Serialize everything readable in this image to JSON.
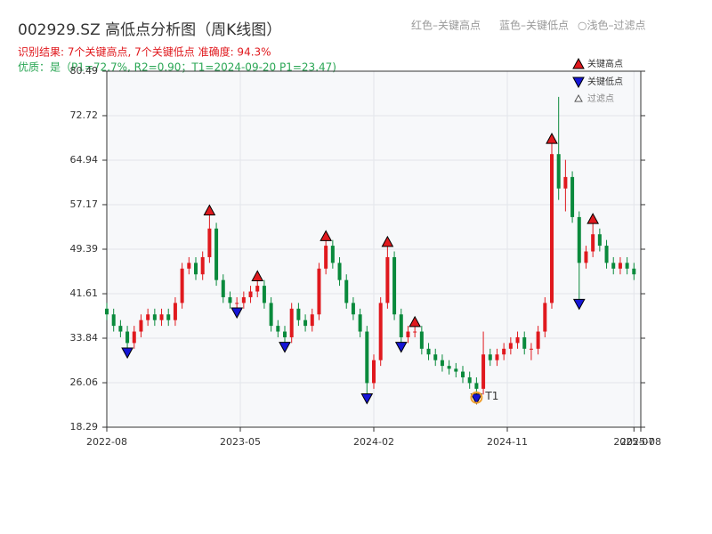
{
  "chart_data": {
    "type": "candlestick",
    "title": "002929.SZ 高低点分析图（周K线图）",
    "notes": [
      "红色–关键高点",
      "蓝色–关键低点",
      "○浅色–过滤点"
    ],
    "subtitle": "识别结果: 7个关键高点, 7个关键低点  准确度: 94.3%",
    "quality": "优质：是（P1=72.7%, R2=0.90；T1=2024-09-20 P1=23.47)",
    "legend": [
      "关键高点",
      "关键低点",
      "过滤点"
    ],
    "up_color": "#e0191e",
    "down_color": "#0a8a3c",
    "high_color": "#e0191e",
    "low_color": "#1515d6",
    "target_color": "#f0a030",
    "xlim": [
      0,
      156
    ],
    "xticks": [
      {
        "value": 0,
        "label": "2022-08"
      },
      {
        "value": 39,
        "label": "2023-05"
      },
      {
        "value": 78,
        "label": "2024-02"
      },
      {
        "value": 117,
        "label": "2024-11"
      },
      {
        "value": 154,
        "label": "2025-07"
      },
      {
        "value": 156,
        "label": "2025-08"
      }
    ],
    "ylim": [
      18.29,
      80.49
    ],
    "yticks": [
      18.29,
      26.06,
      33.84,
      41.61,
      49.39,
      57.17,
      64.94,
      72.72,
      80.49
    ],
    "grid": true,
    "x": [
      0,
      2,
      4,
      6,
      8,
      10,
      12,
      14,
      16,
      18,
      20,
      22,
      24,
      26,
      28,
      30,
      32,
      34,
      36,
      38,
      40,
      42,
      44,
      46,
      48,
      50,
      52,
      54,
      56,
      58,
      60,
      62,
      64,
      66,
      68,
      70,
      72,
      74,
      76,
      78,
      80,
      82,
      84,
      86,
      88,
      90,
      92,
      94,
      96,
      98,
      100,
      102,
      104,
      106,
      108,
      110,
      112,
      114,
      116,
      118,
      120,
      122,
      124,
      126,
      128,
      130,
      132,
      134,
      136,
      138,
      140,
      142,
      144,
      146,
      148,
      150,
      152,
      154
    ],
    "open": [
      39,
      38,
      36,
      35,
      33,
      35,
      37,
      38,
      37,
      38,
      37,
      40,
      46,
      47,
      45,
      48,
      53,
      44,
      41,
      40,
      40,
      41,
      42,
      43,
      40,
      36,
      35,
      34,
      39,
      37,
      36,
      38,
      46,
      50,
      47,
      44,
      40,
      38,
      35,
      26,
      30,
      40,
      48,
      38,
      34,
      35,
      35,
      32,
      31,
      30,
      29,
      28.5,
      28,
      27,
      26,
      25,
      31,
      30,
      31,
      32,
      33,
      34,
      32,
      32,
      35,
      40,
      66,
      60,
      62,
      55,
      47,
      49,
      52,
      50,
      47,
      46,
      47,
      46
    ],
    "close": [
      38,
      36,
      35,
      33,
      35,
      37,
      38,
      37,
      38,
      37,
      40,
      46,
      47,
      45,
      48,
      53,
      44,
      41,
      40,
      40,
      41,
      42,
      43,
      40,
      36,
      35,
      34,
      39,
      37,
      36,
      38,
      46,
      50,
      47,
      44,
      40,
      38,
      35,
      26,
      30,
      40,
      48,
      38,
      34,
      35,
      35,
      32,
      31,
      30,
      29,
      28.5,
      28,
      27,
      26,
      25,
      31,
      30,
      31,
      32,
      33,
      34,
      32,
      32,
      35,
      40,
      66,
      60,
      62,
      55,
      47,
      49,
      52,
      50,
      47,
      46,
      47,
      46,
      45
    ],
    "high": [
      40,
      39,
      37,
      36,
      36,
      38,
      39,
      39,
      39,
      39,
      41,
      47,
      48,
      48,
      49,
      56,
      54,
      45,
      42,
      41,
      42,
      43,
      44.5,
      44,
      41,
      37,
      36,
      40,
      40,
      38,
      39,
      47,
      51.5,
      51,
      48,
      45,
      41,
      39,
      36,
      31,
      41,
      50.5,
      49,
      39,
      36,
      36.5,
      36,
      33,
      32,
      31,
      30,
      29.5,
      29,
      28,
      27,
      35,
      32,
      32,
      33,
      34,
      35,
      35,
      33,
      36,
      41,
      68.5,
      76,
      65,
      63,
      56,
      50,
      54.5,
      53,
      51,
      48,
      48,
      48,
      47
    ],
    "low": [
      37,
      35,
      34,
      31.5,
      32,
      34,
      36,
      36,
      36,
      36,
      36,
      39,
      45,
      44,
      44,
      47,
      43,
      40,
      39,
      38.5,
      39,
      40,
      41,
      39,
      35,
      34,
      32.5,
      33,
      36,
      35,
      35,
      37,
      45,
      46,
      43,
      39,
      37,
      34,
      23.5,
      25,
      29,
      39,
      37,
      32.5,
      33,
      34,
      31,
      30,
      29,
      28,
      27.5,
      27,
      26,
      25,
      23.47,
      24,
      29,
      29,
      30,
      31,
      32,
      31,
      30,
      31,
      34,
      39,
      58,
      56,
      54,
      40,
      46,
      48,
      49,
      46,
      45,
      45,
      45,
      44
    ],
    "key_highs": {
      "x": [
        30,
        44,
        64,
        82,
        90,
        130,
        142
      ],
      "values": [
        56,
        44.5,
        51.5,
        50.5,
        36.5,
        68.5,
        54.5
      ]
    },
    "key_lows": {
      "x": [
        6,
        38,
        52,
        76,
        86,
        108,
        138
      ],
      "values": [
        31.5,
        38.5,
        32.5,
        23.5,
        32.5,
        23.47,
        40
      ]
    },
    "target": {
      "label": "T1",
      "x": 108,
      "value": 23.47
    }
  }
}
